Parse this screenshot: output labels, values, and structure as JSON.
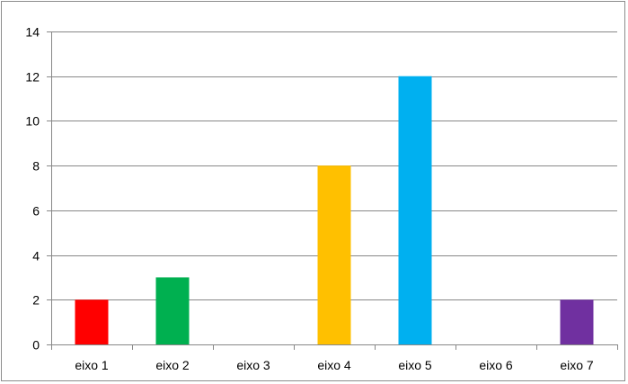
{
  "chart_data": {
    "type": "bar",
    "title": "",
    "xlabel": "",
    "ylabel": "",
    "categories": [
      "eixo 1",
      "eixo 2",
      "eixo 3",
      "eixo 4",
      "eixo 5",
      "eixo 6",
      "eixo 7"
    ],
    "values": [
      2,
      3,
      0,
      8,
      12,
      0,
      2
    ],
    "bar_colors": [
      "#ff0000",
      "#00b050",
      "#7f7f7f",
      "#ffc000",
      "#00b0f0",
      "#7f7f7f",
      "#7030a0"
    ],
    "ylim": [
      0,
      14
    ],
    "yticks": [
      0,
      2,
      4,
      6,
      8,
      10,
      12,
      14
    ],
    "grid": true,
    "legend": "none"
  }
}
